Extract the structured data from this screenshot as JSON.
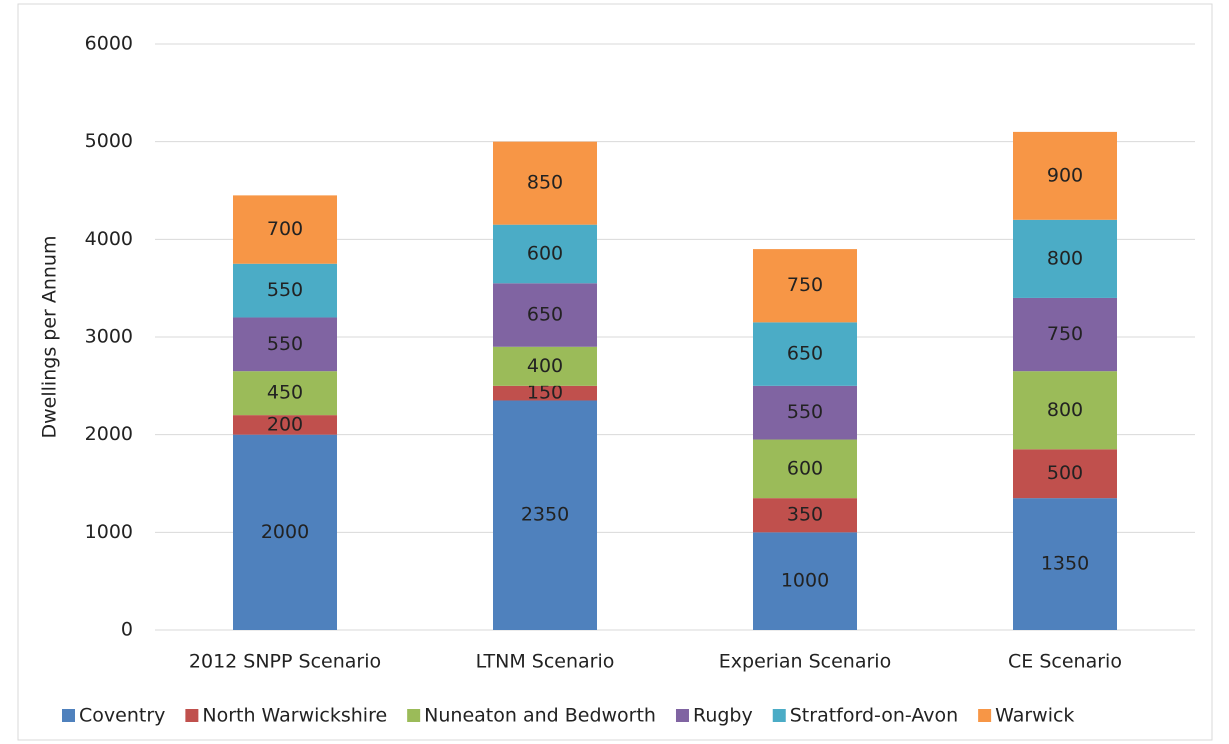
{
  "chart_data": {
    "type": "stacked_bar",
    "y_label": "Dwellings per Annum",
    "categories": [
      "2012 SNPP Scenario",
      "LTNM Scenario",
      "Experian Scenario",
      "CE Scenario"
    ],
    "series": [
      {
        "name": "Coventry",
        "color": "#4f81bd",
        "values": [
          2000,
          2350,
          1000,
          1350
        ]
      },
      {
        "name": "North Warwickshire",
        "color": "#c0504d",
        "values": [
          200,
          150,
          350,
          500
        ]
      },
      {
        "name": "Nuneaton and Bedworth",
        "color": "#9bbb59",
        "values": [
          450,
          400,
          600,
          800
        ]
      },
      {
        "name": "Rugby",
        "color": "#8064a2",
        "values": [
          550,
          650,
          550,
          750
        ]
      },
      {
        "name": "Stratford-on-Avon",
        "color": "#4bacc6",
        "values": [
          550,
          600,
          650,
          800
        ]
      },
      {
        "name": "Warwick",
        "color": "#f79646",
        "values": [
          700,
          850,
          750,
          900
        ]
      }
    ],
    "ylim": [
      0,
      6000
    ],
    "yticks": [
      0,
      1000,
      2000,
      3000,
      4000,
      5000,
      6000
    ],
    "grid": true,
    "legend": "bottom"
  }
}
